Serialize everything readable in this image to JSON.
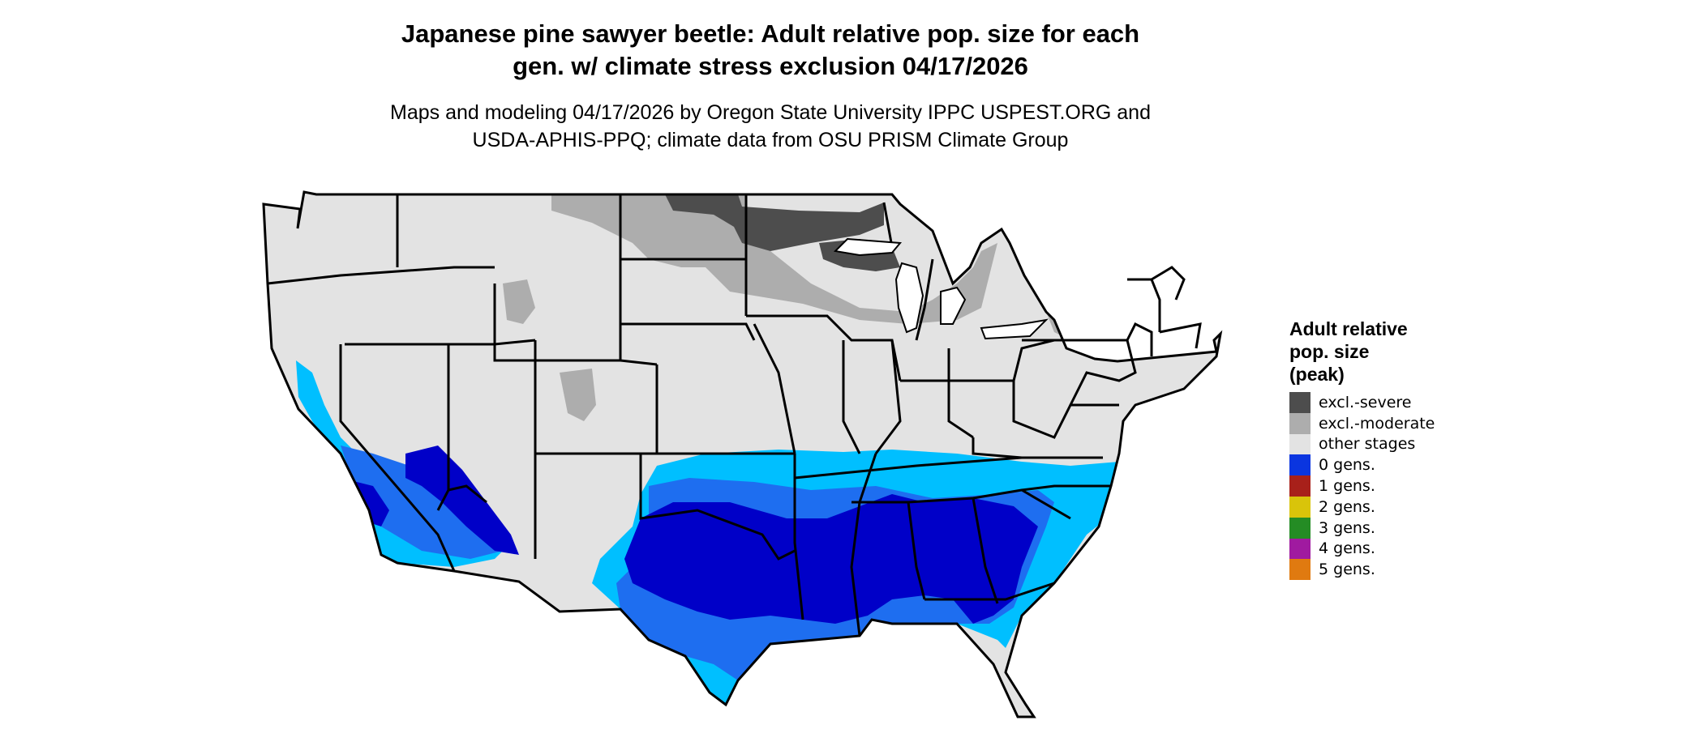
{
  "title": {
    "line1": "Japanese pine sawyer beetle: Adult relative pop. size for each",
    "line2": "gen. w/ climate stress exclusion 04/17/2026"
  },
  "subtitle": {
    "line1": "Maps and modeling 04/17/2026 by Oregon State University IPPC USPEST.ORG and",
    "line2": "USDA-APHIS-PPQ; climate data from OSU PRISM Climate Group"
  },
  "legend": {
    "title_line1": "Adult relative",
    "title_line2": "pop. size",
    "title_line3": "(peak)",
    "items": [
      {
        "label": "excl.-severe",
        "color": "#4d4d4d"
      },
      {
        "label": "excl.-moderate",
        "color": "#adadad"
      },
      {
        "label": "other stages",
        "color": "#e3e3e3"
      },
      {
        "label": "0 gens.",
        "color": "#0a35e0"
      },
      {
        "label": "1 gens.",
        "color": "#a8201a"
      },
      {
        "label": "2 gens.",
        "color": "#d9c40a"
      },
      {
        "label": "3 gens.",
        "color": "#248c24"
      },
      {
        "label": "4 gens.",
        "color": "#a01aa0"
      },
      {
        "label": "5 gens.",
        "color": "#e07a10"
      }
    ]
  },
  "map_colors": {
    "base": "#e3e3e3",
    "moderate": "#adadad",
    "severe": "#4d4d4d",
    "light_blue": "#00bfff",
    "mid_blue": "#1e6ef0",
    "dark_blue": "#0000c8",
    "border": "#000000"
  }
}
